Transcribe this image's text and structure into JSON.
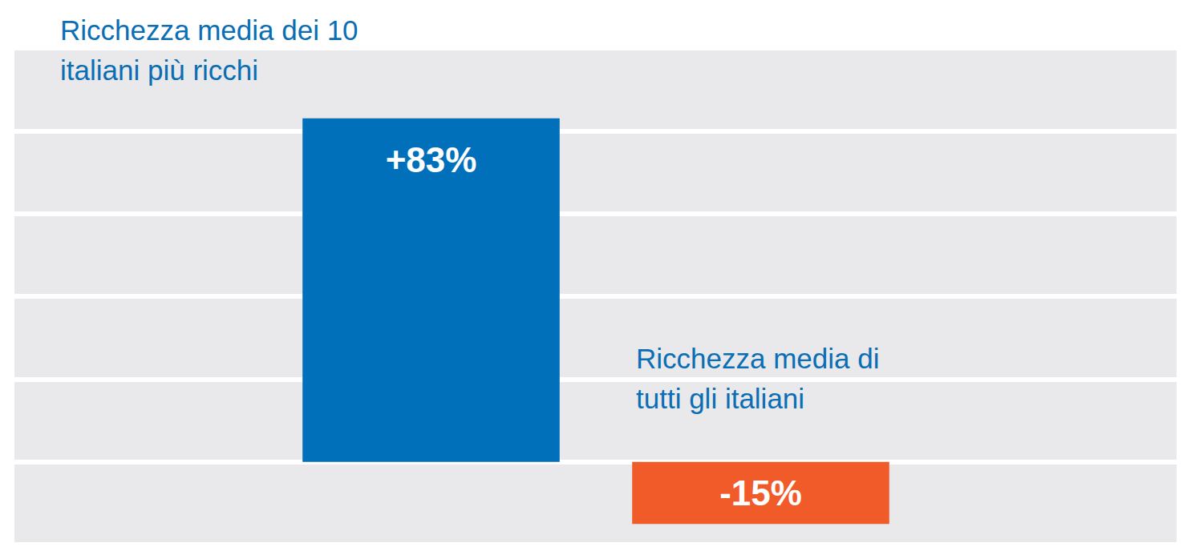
{
  "chart_data": {
    "type": "bar",
    "categories": [
      "Ricchezza media dei 10 italiani più ricchi",
      "Ricchezza media di tutti gli italiani"
    ],
    "values": [
      83,
      -15
    ],
    "value_labels": [
      "+83%",
      "-15%"
    ],
    "colors": [
      "#0070ba",
      "#f15a29"
    ],
    "ylim": [
      -20,
      100
    ],
    "yticks": [
      -20,
      0,
      20,
      40,
      60,
      80,
      100
    ],
    "grid": true,
    "data_labels": true,
    "tick_labels": false
  }
}
